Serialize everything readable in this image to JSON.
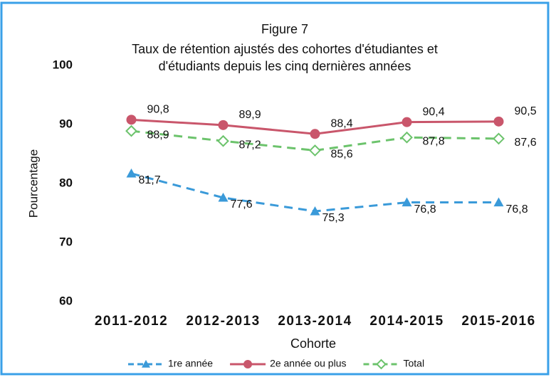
{
  "chart_data": {
    "type": "line",
    "title": "Figure 7",
    "subtitle": [
      "Taux de rétention ajustés des cohortes d'étudiantes et",
      "d'étudiants depuis les cinq dernières années"
    ],
    "x_label": "Cohorte",
    "y_label": "Pourcentage",
    "categories": [
      "2011-2012",
      "2012-2013",
      "2013-2014",
      "2014-2015",
      "2015-2016"
    ],
    "series": [
      {
        "name": "1re année",
        "color": "#3a9ad9",
        "marker": "triangle",
        "dashed": true,
        "values": [
          81.7,
          77.6,
          75.3,
          76.8,
          76.8
        ],
        "value_labels": [
          "81,7",
          "77,6",
          "75,3",
          "76,8",
          "76,8"
        ]
      },
      {
        "name": "2e année ou plus",
        "color": "#c9566b",
        "marker": "circle",
        "dashed": false,
        "values": [
          90.8,
          89.9,
          88.4,
          90.4,
          90.5
        ],
        "value_labels": [
          "90,8",
          "89,9",
          "88,4",
          "90,4",
          "90,5"
        ]
      },
      {
        "name": "Total",
        "color": "#6cc36c",
        "marker": "diamond",
        "dashed": true,
        "values": [
          88.9,
          87.2,
          85.6,
          87.8,
          87.6
        ],
        "value_labels": [
          "88,9",
          "87,2",
          "85,6",
          "87,8",
          "87,6"
        ]
      }
    ],
    "ylim": [
      60,
      100
    ],
    "yticks": [
      60,
      70,
      80,
      90,
      100
    ],
    "grid": false,
    "legend": "bottom"
  }
}
